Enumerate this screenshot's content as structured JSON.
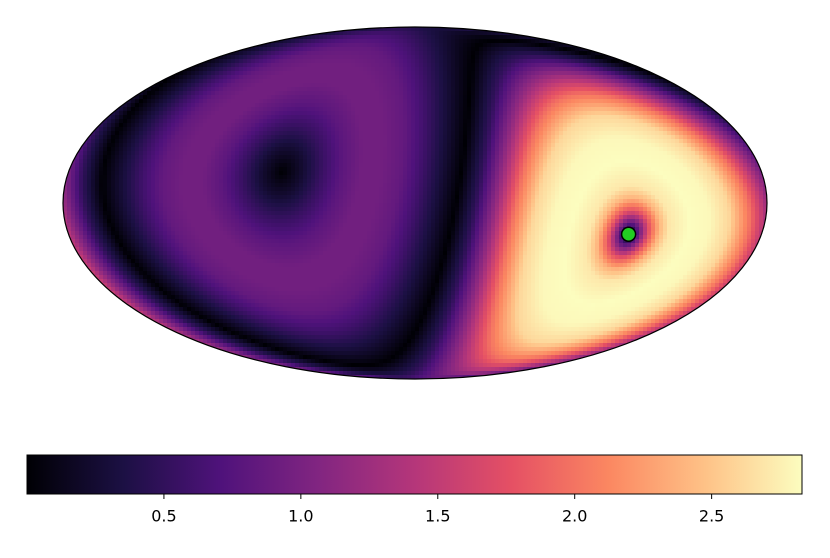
{
  "chart_data": {
    "type": "mollweide",
    "projection_flip": "astro",
    "point": {
      "lon": -111,
      "lat": -13,
      "color": "#22cc22"
    },
    "radial_profile": {
      "distance_deg": [
        0,
        5,
        10,
        15,
        20,
        30,
        40,
        50,
        60,
        70,
        80,
        90,
        100,
        110,
        120,
        130,
        140,
        150,
        160,
        170,
        180
      ],
      "values": [
        0,
        0.9,
        1.8,
        2.4,
        2.7,
        2.83,
        2.8,
        2.6,
        2.0,
        1.2,
        0.5,
        0,
        0.3,
        0.6,
        0.85,
        0.95,
        0.95,
        0.8,
        0.55,
        0.25,
        0
      ]
    },
    "colormap": [
      "#000004",
      "#1c1044",
      "#4f127b",
      "#812581",
      "#b5367a",
      "#e55064",
      "#fb8761",
      "#fec287",
      "#fcfdbf"
    ],
    "clim": [
      0,
      2.83
    ],
    "colorbar_ticks": [
      0.5,
      {
        "value": 1,
        "label": "1.0"
      },
      1.5,
      {
        "value": 2,
        "label": "2.0"
      },
      2.5
    ]
  }
}
